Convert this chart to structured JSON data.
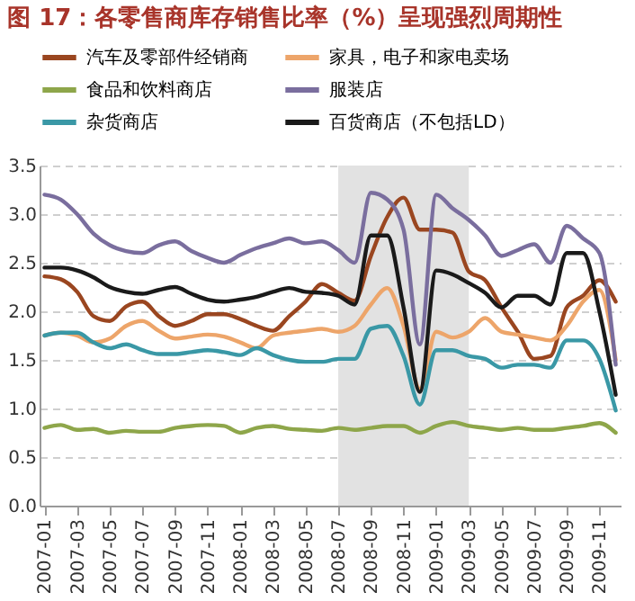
{
  "chart_data": {
    "type": "line",
    "title": "图 17：各零售商库存销售比率（%）呈现强烈周期性",
    "categories": [
      "2007-01",
      null,
      "2007-03",
      null,
      "2007-05",
      null,
      "2007-07",
      null,
      "2007-09",
      null,
      "2007-11",
      null,
      "2008-01",
      null,
      "2008-03",
      null,
      "2008-05",
      null,
      "2008-07",
      null,
      "2008-09",
      null,
      "2008-11",
      null,
      "2009-01",
      null,
      "2009-03",
      null,
      "2009-05",
      null,
      "2009-07",
      null,
      "2009-09",
      null,
      "2009-11",
      null
    ],
    "series": [
      {
        "name": "汽车及零部件经销商",
        "color": "#9a4620",
        "values": [
          2.36,
          2.33,
          2.2,
          1.95,
          1.9,
          2.05,
          2.1,
          1.95,
          1.85,
          1.9,
          1.97,
          1.97,
          1.92,
          1.85,
          1.8,
          1.95,
          2.1,
          2.28,
          2.19,
          2.11,
          2.57,
          2.97,
          3.17,
          2.84,
          2.84,
          2.81,
          2.41,
          2.32,
          2.04,
          1.79,
          1.51,
          1.54,
          2.04,
          2.16,
          2.32,
          2.1
        ]
      },
      {
        "name": "家具，电子和家电卖场",
        "color": "#eda56a",
        "values": [
          1.75,
          1.78,
          1.75,
          1.68,
          1.72,
          1.85,
          1.9,
          1.8,
          1.72,
          1.74,
          1.76,
          1.74,
          1.68,
          1.62,
          1.75,
          1.78,
          1.8,
          1.82,
          1.79,
          1.85,
          2.07,
          2.24,
          1.85,
          1.2,
          1.79,
          1.73,
          1.79,
          1.93,
          1.79,
          1.76,
          1.73,
          1.7,
          1.85,
          2.1,
          2.22,
          1.5
        ]
      },
      {
        "name": "食品和饮料商店",
        "color": "#8ea64a",
        "values": [
          0.8,
          0.83,
          0.78,
          0.79,
          0.75,
          0.77,
          0.76,
          0.76,
          0.8,
          0.82,
          0.83,
          0.82,
          0.75,
          0.8,
          0.82,
          0.79,
          0.78,
          0.77,
          0.8,
          0.78,
          0.8,
          0.82,
          0.82,
          0.75,
          0.82,
          0.86,
          0.82,
          0.8,
          0.78,
          0.8,
          0.78,
          0.78,
          0.8,
          0.82,
          0.85,
          0.75
        ]
      },
      {
        "name": "服装店",
        "color": "#7a6e9e",
        "values": [
          3.2,
          3.15,
          3.0,
          2.8,
          2.68,
          2.62,
          2.6,
          2.68,
          2.72,
          2.62,
          2.55,
          2.5,
          2.58,
          2.65,
          2.7,
          2.75,
          2.7,
          2.72,
          2.63,
          2.5,
          3.22,
          3.15,
          2.84,
          1.66,
          3.2,
          3.06,
          2.94,
          2.78,
          2.57,
          2.63,
          2.69,
          2.5,
          2.88,
          2.75,
          2.6,
          1.45
        ]
      },
      {
        "name": "杂货商店",
        "color": "#3a98a6",
        "values": [
          1.75,
          1.78,
          1.78,
          1.68,
          1.62,
          1.66,
          1.6,
          1.56,
          1.56,
          1.58,
          1.6,
          1.58,
          1.55,
          1.62,
          1.55,
          1.5,
          1.48,
          1.48,
          1.51,
          1.51,
          1.82,
          1.85,
          1.54,
          1.04,
          1.6,
          1.6,
          1.54,
          1.51,
          1.42,
          1.45,
          1.45,
          1.42,
          1.7,
          1.7,
          1.51,
          0.98
        ]
      },
      {
        "name": "百货商店（不包括LD）",
        "color": "#1a1a1a",
        "values": [
          2.45,
          2.45,
          2.42,
          2.35,
          2.25,
          2.2,
          2.18,
          2.22,
          2.25,
          2.18,
          2.12,
          2.1,
          2.12,
          2.15,
          2.2,
          2.24,
          2.2,
          2.19,
          2.16,
          2.07,
          2.78,
          2.78,
          2.04,
          1.17,
          2.42,
          2.38,
          2.29,
          2.19,
          2.04,
          2.16,
          2.16,
          2.07,
          2.6,
          2.6,
          2.0,
          1.14
        ]
      }
    ],
    "ylim": [
      0,
      3.5
    ],
    "yticks": [
      {
        "value": 0,
        "label": "0.0"
      },
      0.5,
      {
        "value": 1,
        "label": "1.0"
      },
      1.5,
      {
        "value": 2,
        "label": "2.0"
      },
      2.5,
      {
        "value": 3,
        "label": "3.0"
      },
      3.5
    ],
    "bands": [
      {
        "axis": "x",
        "from": "2008-07",
        "to": "2009-03",
        "color": "#e2e2e2"
      }
    ],
    "grid": "y",
    "legend": "top"
  }
}
